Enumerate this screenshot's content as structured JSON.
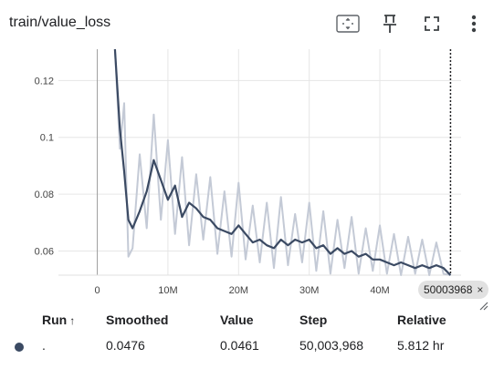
{
  "card": {
    "title": "train/value_loss"
  },
  "toolbar": {
    "icons": [
      "fit-domain-icon",
      "pin-icon",
      "fullscreen-icon",
      "more-vert-icon"
    ]
  },
  "chart_data": {
    "type": "line",
    "title": "train/value_loss",
    "xlabel": "",
    "ylabel": "",
    "x_ticks": [
      "0",
      "10M",
      "20M",
      "30M",
      "40M"
    ],
    "x_tick_values": [
      0,
      10000000,
      20000000,
      30000000,
      40000000
    ],
    "y_ticks": [
      "0.06",
      "0.08",
      "0.1",
      "0.12"
    ],
    "y_tick_values": [
      0.06,
      0.08,
      0.1,
      0.12
    ],
    "xlim": [
      -5500000,
      51500000
    ],
    "ylim": [
      0.0515,
      0.131
    ],
    "grid": true,
    "series": [
      {
        "kind": "smoothed",
        "color": "#3b4a63",
        "x": [
          2500000,
          3200000,
          3800000,
          4400000,
          5000000,
          6000000,
          7000000,
          8000000,
          9000000,
          10000000,
          11000000,
          12000000,
          13000000,
          14000000,
          15000000,
          16000000,
          17000000,
          18000000,
          19000000,
          20000000,
          21000000,
          22000000,
          23000000,
          24000000,
          25000000,
          26000000,
          27000000,
          28000000,
          29000000,
          30000000,
          31000000,
          32000000,
          33000000,
          34000000,
          35000000,
          36000000,
          37000000,
          38000000,
          39000000,
          40000000,
          41000000,
          42000000,
          43000000,
          44000000,
          45000000,
          46000000,
          47000000,
          48000000,
          49000000,
          50003968
        ],
        "values": [
          0.131,
          0.103,
          0.088,
          0.071,
          0.068,
          0.074,
          0.081,
          0.092,
          0.085,
          0.078,
          0.083,
          0.072,
          0.077,
          0.075,
          0.072,
          0.071,
          0.068,
          0.067,
          0.066,
          0.069,
          0.066,
          0.063,
          0.064,
          0.062,
          0.061,
          0.064,
          0.062,
          0.064,
          0.063,
          0.064,
          0.061,
          0.062,
          0.059,
          0.061,
          0.059,
          0.06,
          0.058,
          0.059,
          0.057,
          0.057,
          0.056,
          0.055,
          0.056,
          0.055,
          0.054,
          0.055,
          0.054,
          0.055,
          0.054,
          0.0476
        ]
      },
      {
        "kind": "raw",
        "color": "#c4cad6",
        "x": [
          2500000,
          3200000,
          3800000,
          4400000,
          5000000,
          6000000,
          7000000,
          8000000,
          9000000,
          10000000,
          11000000,
          12000000,
          13000000,
          14000000,
          15000000,
          16000000,
          17000000,
          18000000,
          19000000,
          20000000,
          21000000,
          22000000,
          23000000,
          24000000,
          25000000,
          26000000,
          27000000,
          28000000,
          29000000,
          30000000,
          31000000,
          32000000,
          33000000,
          34000000,
          35000000,
          36000000,
          37000000,
          38000000,
          39000000,
          40000000,
          41000000,
          42000000,
          43000000,
          44000000,
          45000000,
          46000000,
          47000000,
          48000000,
          49000000,
          50003968
        ],
        "values": [
          0.131,
          0.096,
          0.112,
          0.058,
          0.061,
          0.094,
          0.068,
          0.108,
          0.071,
          0.099,
          0.066,
          0.093,
          0.062,
          0.087,
          0.064,
          0.086,
          0.059,
          0.081,
          0.058,
          0.084,
          0.057,
          0.076,
          0.056,
          0.077,
          0.054,
          0.079,
          0.055,
          0.073,
          0.056,
          0.077,
          0.053,
          0.074,
          0.052,
          0.071,
          0.054,
          0.072,
          0.052,
          0.068,
          0.053,
          0.069,
          0.052,
          0.066,
          0.051,
          0.065,
          0.052,
          0.064,
          0.051,
          0.063,
          0.052,
          0.0461
        ]
      }
    ],
    "cursor_step": 50003968
  },
  "step_badge": {
    "label": "50003968",
    "close": "×"
  },
  "table": {
    "headers": {
      "run": "Run",
      "sort": "↑",
      "smoothed": "Smoothed",
      "value": "Value",
      "step": "Step",
      "relative": "Relative"
    },
    "rows": [
      {
        "color": "#3b4a63",
        "run": ".",
        "smoothed": "0.0476",
        "value": "0.0461",
        "step": "50,003,968",
        "relative": "5.812 hr"
      }
    ]
  }
}
